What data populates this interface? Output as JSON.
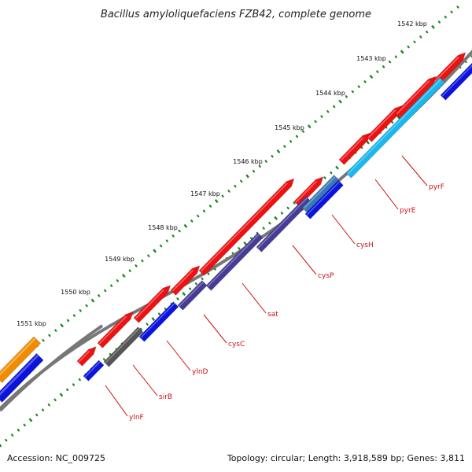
{
  "title": "Bacillus amyloliquefaciens FZB42, complete genome",
  "footer": {
    "accession": "Accession: NC_009725",
    "summary": "Topology: circular; Length: 3,918,589 bp; Genes: 3,811"
  },
  "colors": {
    "forward_cds": "#ee1111",
    "reverse_blue": "#0a14dd",
    "reverse_purple": "#463c96",
    "reverse_cyan": "#1ab8ee",
    "reverse_steel": "#3a78b8",
    "reverse_gray": "#555555",
    "other": "#f08c00",
    "tick": "#1a8a1a",
    "label": "#cc1111"
  },
  "kbp_labels": [
    "1542 kbp",
    "1543 kbp",
    "1544 kbp",
    "1545 kbp",
    "1546 kbp",
    "1547 kbp",
    "1548 kbp",
    "1549 kbp",
    "1550 kbp",
    "1551 kbp"
  ],
  "gene_labels": [
    "pyrF",
    "pyrE",
    "cysH",
    "cysP",
    "sat",
    "cysC",
    "ylnD",
    "sirB",
    "ylnF"
  ]
}
